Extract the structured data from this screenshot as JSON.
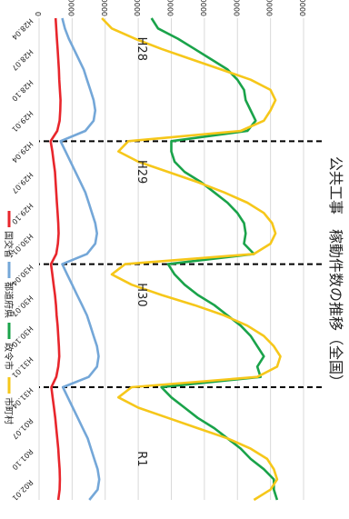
{
  "chart_data": {
    "type": "line",
    "title": "公共工事　稼動件数の推移（全国）",
    "x": [
      "H28.04",
      "H28.05",
      "H28.06",
      "H28.07",
      "H28.08",
      "H28.09",
      "H28.10",
      "H28.11",
      "H28.12",
      "H29.01",
      "H29.02",
      "H29.03",
      "H29.04",
      "H29.05",
      "H29.06",
      "H29.07",
      "H29.08",
      "H29.09",
      "H29.10",
      "H29.11",
      "H29.12",
      "H30.01",
      "H30.02",
      "H30.03",
      "H30.04",
      "H30.05",
      "H30.06",
      "H30.07",
      "H30.08",
      "H30.09",
      "H30.10",
      "H30.11",
      "H30.12",
      "H31.01",
      "H31.02",
      "H31.03",
      "H31.04",
      "R01.05",
      "R01.06",
      "R01.07",
      "R01.08",
      "R01.09",
      "R01.10",
      "R01.11",
      "R01.12",
      "R02.01",
      "R02.02",
      "R02.03"
    ],
    "xticks": [
      "H28.04",
      "H28.07",
      "H28.10",
      "H29.01",
      "H29.04",
      "H29.07",
      "H29.10",
      "H30.01",
      "H30.04",
      "H30.07",
      "H30.10",
      "H31.01",
      "H31.04",
      "R01.07",
      "R01.10",
      "R02.01"
    ],
    "ylim": [
      0,
      80000
    ],
    "yticks": [
      0,
      10000,
      20000,
      30000,
      40000,
      50000,
      60000,
      70000,
      80000
    ],
    "series": [
      {
        "name": "国交省",
        "color": "#e8262c",
        "values": [
          5000,
          5200,
          5400,
          5600,
          5800,
          6000,
          6100,
          6300,
          6500,
          6400,
          6200,
          5500,
          3500,
          4000,
          4400,
          4800,
          5000,
          5200,
          5400,
          5600,
          5800,
          5900,
          5700,
          5200,
          3600,
          4000,
          4400,
          4800,
          5100,
          5300,
          5600,
          5800,
          6000,
          6100,
          5800,
          5200,
          3700,
          4100,
          4500,
          4900,
          5200,
          5500,
          5800,
          6000,
          6200,
          6300,
          6200,
          5800
        ]
      },
      {
        "name": "都道府県",
        "color": "#74a7d8",
        "values": [
          7000,
          7800,
          9000,
          10500,
          12000,
          13500,
          14500,
          15500,
          16500,
          17000,
          16500,
          14000,
          6500,
          8000,
          9500,
          11000,
          12500,
          14000,
          15000,
          16000,
          17000,
          17500,
          17000,
          14500,
          7000,
          8500,
          10000,
          11500,
          13000,
          14500,
          15500,
          16500,
          17500,
          18000,
          17500,
          15000,
          7200,
          8700,
          10200,
          11700,
          13200,
          14700,
          15700,
          16700,
          17700,
          18200,
          17700,
          15200
        ]
      },
      {
        "name": "政令市",
        "color": "#1aa34a",
        "values": [
          34000,
          36000,
          42000,
          47000,
          52000,
          57000,
          60000,
          62000,
          62500,
          64000,
          65500,
          63000,
          40000,
          40000,
          41000,
          44000,
          49000,
          53000,
          57000,
          60000,
          62000,
          62500,
          62000,
          65000,
          39000,
          41000,
          44000,
          48000,
          53000,
          57000,
          61000,
          64000,
          66000,
          68000,
          66000,
          67000,
          37000,
          40000,
          44000,
          48000,
          53000,
          57000,
          61000,
          64000,
          68000,
          71000,
          71000,
          72000
        ]
      },
      {
        "name": "市町村",
        "color": "#f6c71a",
        "values": [
          19000,
          22000,
          29000,
          37000,
          46000,
          55000,
          64000,
          70000,
          71500,
          70000,
          68000,
          61000,
          27000,
          24000,
          30000,
          39000,
          48000,
          56000,
          63000,
          68000,
          70500,
          71500,
          70000,
          65000,
          26000,
          22000,
          28000,
          37000,
          47000,
          56000,
          63000,
          68000,
          71000,
          73000,
          72000,
          66000,
          28000,
          24000,
          30000,
          39000,
          48000,
          57000,
          64000,
          69000,
          71000,
          72000,
          70000,
          65000
        ]
      }
    ],
    "era_labels": [
      "H28",
      "H29",
      "H30",
      "R1"
    ],
    "grid": true,
    "legend": "bottom"
  }
}
